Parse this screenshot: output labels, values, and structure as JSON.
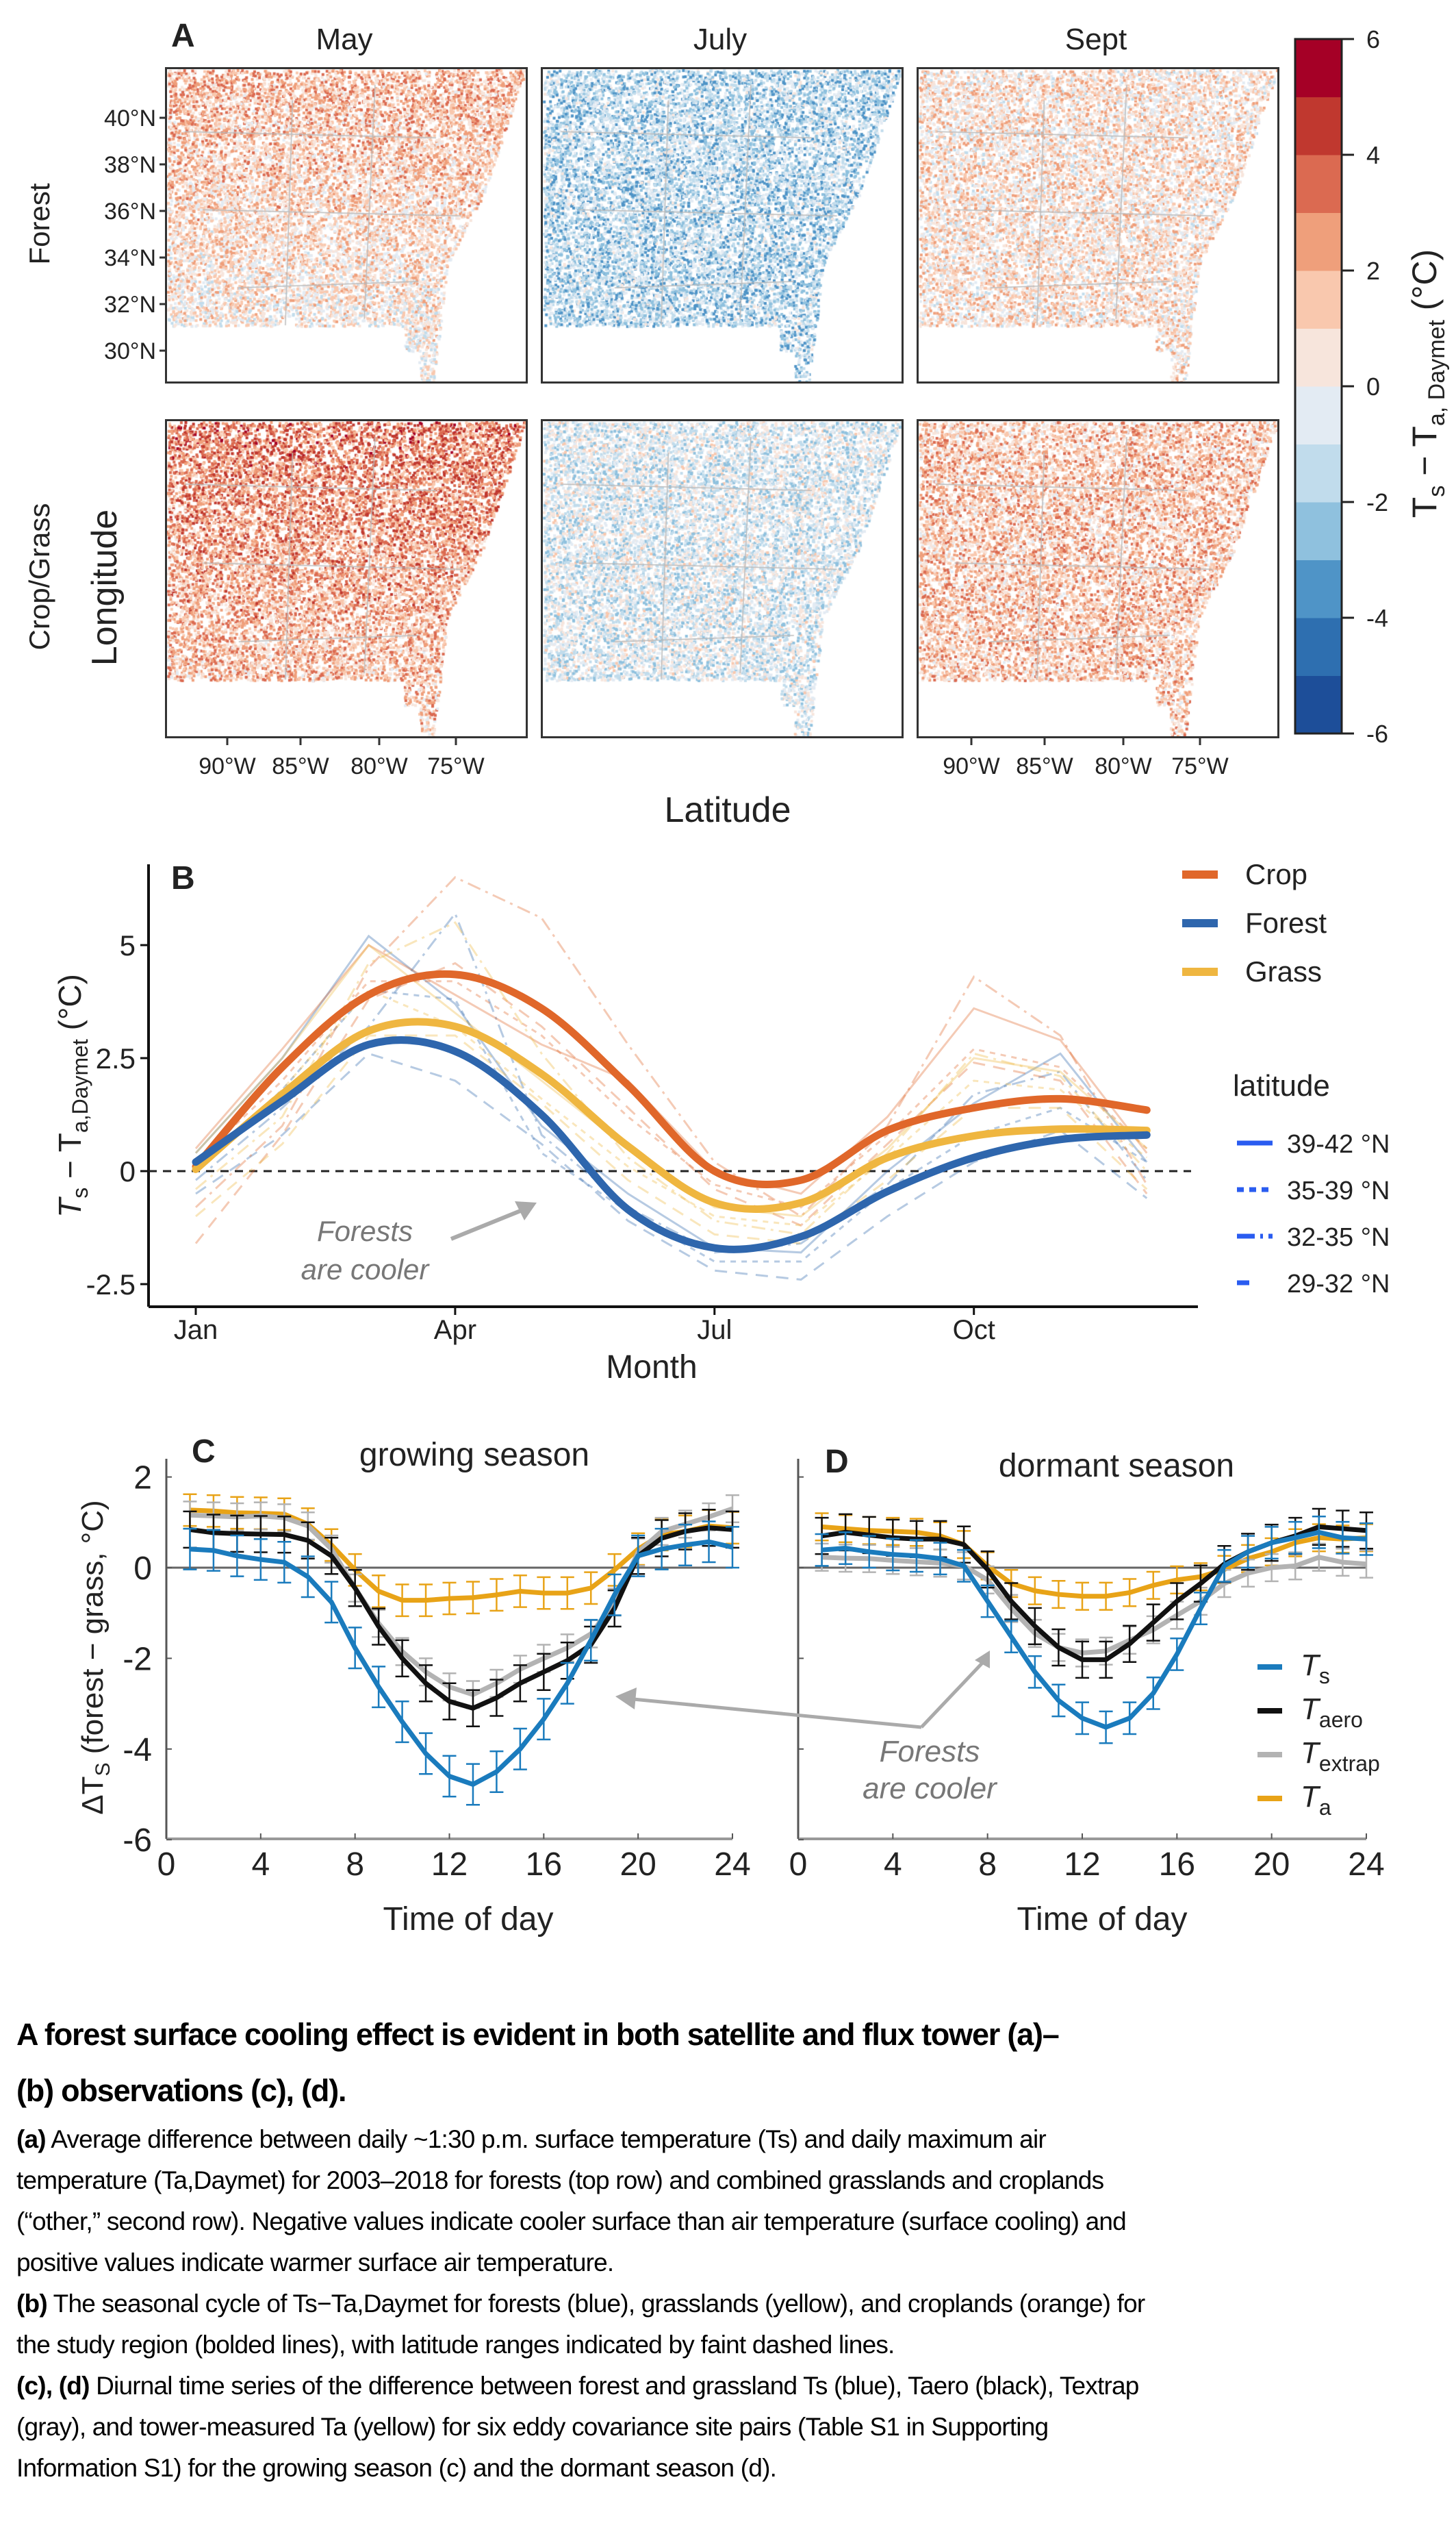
{
  "panel_a": {
    "label": "A",
    "columns": [
      "May",
      "July",
      "Sept"
    ],
    "rows": [
      "Forest",
      "Crop/Grass"
    ],
    "y_axis_label": "Longitude",
    "x_axis_label": "Latitude",
    "lat_ticks": [
      "40°N",
      "38°N",
      "36°N",
      "34°N",
      "32°N",
      "30°N"
    ],
    "lon_ticks": [
      "90°W",
      "85°W",
      "80°W",
      "75°W"
    ],
    "colorbar": {
      "title_main": "T",
      "title_sub1": "s",
      "title_mid": " − T",
      "title_sub2": "a, Daymet",
      "title_unit": " (°C)",
      "ticks": [
        "6",
        "4",
        "2",
        "0",
        "-2",
        "-4",
        "-6"
      ],
      "range": [
        -6,
        6
      ],
      "bins": [
        "#1d4e99",
        "#2e6fb0",
        "#4f94c7",
        "#8fc1de",
        "#c1dcec",
        "#e3ebf3",
        "#f7e5dc",
        "#f9c8ae",
        "#ef9f7b",
        "#db6a51",
        "#c0382f",
        "#a50026"
      ]
    },
    "maps": [
      {
        "row": "Forest",
        "column": "May",
        "approx_mean_anomaly": 1.0
      },
      {
        "row": "Forest",
        "column": "July",
        "approx_mean_anomaly": -1.8
      },
      {
        "row": "Forest",
        "column": "Sept",
        "approx_mean_anomaly": 0.7
      },
      {
        "row": "Crop/Grass",
        "column": "May",
        "approx_mean_anomaly": 2.3
      },
      {
        "row": "Crop/Grass",
        "column": "July",
        "approx_mean_anomaly": -0.8
      },
      {
        "row": "Crop/Grass",
        "column": "Sept",
        "approx_mean_anomaly": 1.6
      }
    ]
  },
  "chart_data": [
    {
      "panel": "B",
      "type": "line",
      "label": "B",
      "xlabel": "Month",
      "ylabel_main": "T",
      "ylabel_sub1": "s",
      "ylabel_mid": " − T",
      "ylabel_sub2": "a,Daymet",
      "ylabel_unit": " (°C)",
      "x": [
        1,
        2,
        3,
        4,
        5,
        6,
        7,
        8,
        9,
        10,
        11,
        12
      ],
      "x_ticks": [
        {
          "value": 1,
          "label": "Jan"
        },
        {
          "value": 4,
          "label": "Apr"
        },
        {
          "value": 7,
          "label": "Jul"
        },
        {
          "value": 10,
          "label": "Oct"
        }
      ],
      "y_ticks": [
        {
          "value": 5,
          "label": "5"
        },
        {
          "value": 2.5,
          "label": "2.5"
        },
        {
          "value": 0,
          "label": "0"
        },
        {
          "value": -2.5,
          "label": "-2.5"
        }
      ],
      "ylim": [
        -3.4,
        6.6
      ],
      "reference_line": 0,
      "series": [
        {
          "name": "Crop",
          "color": "#e0672a",
          "values": [
            0.1,
            2.3,
            3.9,
            4.35,
            3.6,
            1.9,
            0.0,
            -0.2,
            0.9,
            1.4,
            1.6,
            1.35
          ]
        },
        {
          "name": "Forest",
          "color": "#2e66ad",
          "values": [
            0.2,
            1.55,
            2.8,
            2.65,
            1.25,
            -0.85,
            -1.7,
            -1.45,
            -0.45,
            0.3,
            0.7,
            0.8
          ]
        },
        {
          "name": "Grass",
          "color": "#efb640",
          "values": [
            0.04,
            1.7,
            3.1,
            3.2,
            2.15,
            0.55,
            -0.7,
            -0.7,
            0.3,
            0.78,
            0.93,
            0.9
          ]
        }
      ],
      "latitude_series": [
        {
          "class": "Forest",
          "latitude": "39-42 °N",
          "values": [
            0.4,
            2.5,
            5.2,
            3.7,
            1.0,
            -0.5,
            -1.7,
            -1.8,
            0.0,
            1.5,
            2.6,
            0.2
          ]
        },
        {
          "class": "Forest",
          "latitude": "35-39 °N",
          "values": [
            0.0,
            1.8,
            4.0,
            3.8,
            0.4,
            -0.9,
            -2.0,
            -2.0,
            -0.4,
            0.8,
            1.4,
            0.2
          ]
        },
        {
          "class": "Forest",
          "latitude": "32-35 °N",
          "values": [
            -0.2,
            1.4,
            3.2,
            5.7,
            0.8,
            -0.8,
            -1.8,
            -1.6,
            -0.3,
            1.7,
            2.2,
            -0.2
          ]
        },
        {
          "class": "Forest",
          "latitude": "29-32 °N",
          "values": [
            -0.5,
            0.8,
            2.6,
            2.0,
            0.6,
            -1.1,
            -2.2,
            -2.4,
            -1.0,
            0.2,
            0.9,
            -0.6
          ]
        },
        {
          "class": "Crop",
          "latitude": "39-42 °N",
          "values": [
            0.5,
            2.7,
            5.0,
            3.9,
            2.8,
            2.0,
            0.0,
            -0.5,
            1.2,
            3.6,
            2.9,
            0.4
          ]
        },
        {
          "class": "Crop",
          "latitude": "35-39 °N",
          "values": [
            0.2,
            2.0,
            4.2,
            4.2,
            3.0,
            1.2,
            -0.3,
            -0.8,
            0.8,
            2.7,
            2.3,
            0.5
          ]
        },
        {
          "class": "Crop",
          "latitude": "32-35 °N",
          "values": [
            -0.8,
            1.0,
            4.5,
            6.5,
            5.6,
            2.8,
            0.2,
            -1.0,
            1.0,
            4.3,
            3.0,
            -0.3
          ]
        },
        {
          "class": "Crop",
          "latitude": "29-32 °N",
          "values": [
            -1.6,
            0.8,
            3.8,
            4.6,
            3.2,
            1.4,
            -0.4,
            -1.2,
            0.6,
            2.4,
            2.0,
            -0.5
          ]
        },
        {
          "class": "Grass",
          "latitude": "39-42 °N",
          "values": [
            0.4,
            2.5,
            5.0,
            3.5,
            2.0,
            0.5,
            -0.8,
            -1.0,
            0.5,
            2.5,
            2.2,
            0.5
          ]
        },
        {
          "class": "Grass",
          "latitude": "35-39 °N",
          "values": [
            0.1,
            1.8,
            4.0,
            3.2,
            1.6,
            0.1,
            -1.0,
            -1.2,
            0.3,
            2.0,
            1.8,
            0.3
          ]
        },
        {
          "class": "Grass",
          "latitude": "32-35 °N",
          "values": [
            -0.4,
            1.2,
            4.6,
            5.5,
            2.6,
            0.3,
            -1.1,
            -1.4,
            0.4,
            2.6,
            2.1,
            0.0
          ]
        },
        {
          "class": "Grass",
          "latitude": "29-32 °N",
          "values": [
            -1.0,
            0.6,
            3.0,
            3.0,
            1.5,
            -0.2,
            -1.4,
            -1.6,
            -0.2,
            1.4,
            1.4,
            -0.4
          ]
        }
      ],
      "legend_title": "latitude",
      "latitude_legend": [
        "39-42 °N",
        "35-39 °N",
        "32-35 °N",
        "29-32 °N"
      ],
      "legend_placement": "right",
      "annotation_line1": "Forests",
      "annotation_line2": "are cooler"
    },
    {
      "panel": "C",
      "type": "line",
      "label": "C",
      "title": "growing season",
      "xlabel": "Time of day",
      "ylabel": "ΔT",
      "ylabel_sub": "S",
      "ylabel_rest": " (forest − grass, °C)",
      "x": [
        1,
        2,
        3,
        4,
        5,
        6,
        7,
        8,
        9,
        10,
        11,
        12,
        13,
        14,
        15,
        16,
        17,
        18,
        19,
        20,
        21,
        22,
        23,
        24
      ],
      "x_ticks": [
        "0",
        "4",
        "8",
        "12",
        "16",
        "20",
        "24"
      ],
      "y_ticks": [
        "2",
        "0",
        "-2",
        "-4",
        "-6"
      ],
      "xlim": [
        0,
        24
      ],
      "ylim": [
        -6,
        2.4
      ],
      "series": [
        {
          "name": "Ta",
          "color": "#e8a317",
          "error": 0.35,
          "values": [
            1.27,
            1.25,
            1.21,
            1.2,
            1.18,
            0.96,
            0.5,
            -0.05,
            -0.52,
            -0.72,
            -0.72,
            -0.68,
            -0.66,
            -0.6,
            -0.52,
            -0.56,
            -0.56,
            -0.45,
            -0.05,
            0.41,
            0.73,
            0.8,
            0.92,
            0.88
          ]
        },
        {
          "name": "Textrap",
          "color": "#b3b3b3",
          "error": 0.3,
          "values": [
            1.16,
            1.14,
            1.12,
            1.14,
            1.1,
            0.92,
            0.41,
            -0.45,
            -1.23,
            -1.85,
            -2.3,
            -2.63,
            -2.8,
            -2.55,
            -2.24,
            -2.0,
            -1.77,
            -1.46,
            -0.76,
            0.34,
            0.8,
            0.96,
            1.12,
            1.3
          ]
        },
        {
          "name": "Taero",
          "color": "#111111",
          "error": 0.4,
          "values": [
            0.84,
            0.77,
            0.75,
            0.74,
            0.73,
            0.6,
            0.26,
            -0.45,
            -1.3,
            -2.0,
            -2.55,
            -2.95,
            -3.1,
            -2.87,
            -2.55,
            -2.3,
            -2.05,
            -1.7,
            -0.9,
            0.26,
            0.65,
            0.8,
            0.88,
            0.84
          ]
        },
        {
          "name": "Ts",
          "color": "#1a7bbd",
          "error": 0.45,
          "values": [
            0.41,
            0.38,
            0.26,
            0.18,
            0.12,
            -0.2,
            -0.76,
            -1.77,
            -2.63,
            -3.4,
            -4.1,
            -4.6,
            -4.78,
            -4.5,
            -4.0,
            -3.34,
            -2.55,
            -1.6,
            -0.6,
            0.26,
            0.41,
            0.5,
            0.57,
            0.45
          ]
        }
      ]
    },
    {
      "panel": "D",
      "type": "line",
      "label": "D",
      "title": "dormant season",
      "xlabel": "Time of day",
      "x": [
        1,
        2,
        3,
        4,
        5,
        6,
        7,
        8,
        9,
        10,
        11,
        12,
        13,
        14,
        15,
        16,
        17,
        18,
        19,
        20,
        21,
        22,
        23,
        24
      ],
      "x_ticks": [
        "0",
        "4",
        "8",
        "12",
        "16",
        "20",
        "24"
      ],
      "xlim": [
        0,
        24
      ],
      "ylim": [
        -6,
        2.4
      ],
      "series": [
        {
          "name": "Ta",
          "color": "#e8a317",
          "error": 0.3,
          "values": [
            0.9,
            0.86,
            0.82,
            0.8,
            0.78,
            0.7,
            0.51,
            0.04,
            -0.35,
            -0.51,
            -0.59,
            -0.63,
            -0.63,
            -0.55,
            -0.39,
            -0.27,
            -0.2,
            -0.04,
            0.2,
            0.35,
            0.55,
            0.66,
            0.63,
            0.66
          ]
        },
        {
          "name": "Textrap",
          "color": "#b3b3b3",
          "error": 0.3,
          "values": [
            0.23,
            0.21,
            0.2,
            0.16,
            0.13,
            0.1,
            0.04,
            -0.27,
            -0.9,
            -1.45,
            -1.76,
            -1.88,
            -1.84,
            -1.6,
            -1.37,
            -1.05,
            -0.74,
            -0.35,
            -0.12,
            0.0,
            0.04,
            0.23,
            0.12,
            0.08
          ]
        },
        {
          "name": "Taero",
          "color": "#111111",
          "error": 0.4,
          "values": [
            0.7,
            0.78,
            0.72,
            0.66,
            0.63,
            0.63,
            0.51,
            -0.04,
            -0.74,
            -1.29,
            -1.76,
            -2.03,
            -2.03,
            -1.68,
            -1.21,
            -0.74,
            -0.35,
            0.08,
            0.35,
            0.55,
            0.7,
            0.9,
            0.86,
            0.82
          ]
        },
        {
          "name": "Ts",
          "color": "#1a7bbd",
          "error": 0.35,
          "values": [
            0.39,
            0.43,
            0.35,
            0.29,
            0.26,
            0.2,
            0.04,
            -0.74,
            -1.52,
            -2.3,
            -2.93,
            -3.32,
            -3.52,
            -3.32,
            -2.77,
            -1.91,
            -0.9,
            0.04,
            0.35,
            0.55,
            0.66,
            0.78,
            0.66,
            0.63
          ]
        }
      ],
      "legend": [
        {
          "name": "Ts",
          "main": "T",
          "sub": "s",
          "color": "#1a7bbd"
        },
        {
          "name": "Taero",
          "main": "T",
          "sub": "aero",
          "color": "#111111"
        },
        {
          "name": "Textrap",
          "main": "T",
          "sub": "extrap",
          "color": "#b3b3b3"
        },
        {
          "name": "Ta",
          "main": "T",
          "sub": "a",
          "color": "#e8a317"
        }
      ],
      "legend_placement": "bottom-right",
      "annotation_line1": "Forests",
      "annotation_line2": "are cooler"
    }
  ],
  "caption": {
    "title_lines": [
      "A forest surface cooling effect is evident in both satellite and flux tower (a)–",
      "(b) observations (c), (d)."
    ],
    "a_label": "(a)",
    "a_lines": [
      " Average difference between daily ~1:30 p.m. surface temperature (Ts) and daily maximum air",
      "temperature (Ta,Daymet) for 2003–2018 for forests (top row) and combined grasslands and croplands",
      "(“other,” second row). Negative values indicate cooler surface than air temperature (surface cooling) and",
      "positive values indicate warmer surface air temperature."
    ],
    "b_label": "(b)",
    "b_lines": [
      " The seasonal cycle of Ts−Ta,Daymet for forests (blue), grasslands (yellow), and croplands (orange) for",
      "the study region (bolded lines), with latitude ranges indicated by faint dashed lines."
    ],
    "cd_label": "(c), (d)",
    "cd_lines": [
      " Diurnal time series of the difference between forest and grassland Ts (blue), Taero (black), Textrap",
      "(gray), and tower-measured Ta (yellow) for six eddy covariance site pairs (Table S1 in Supporting",
      "Information S1) for the growing season (c) and the dormant season (d)."
    ]
  }
}
